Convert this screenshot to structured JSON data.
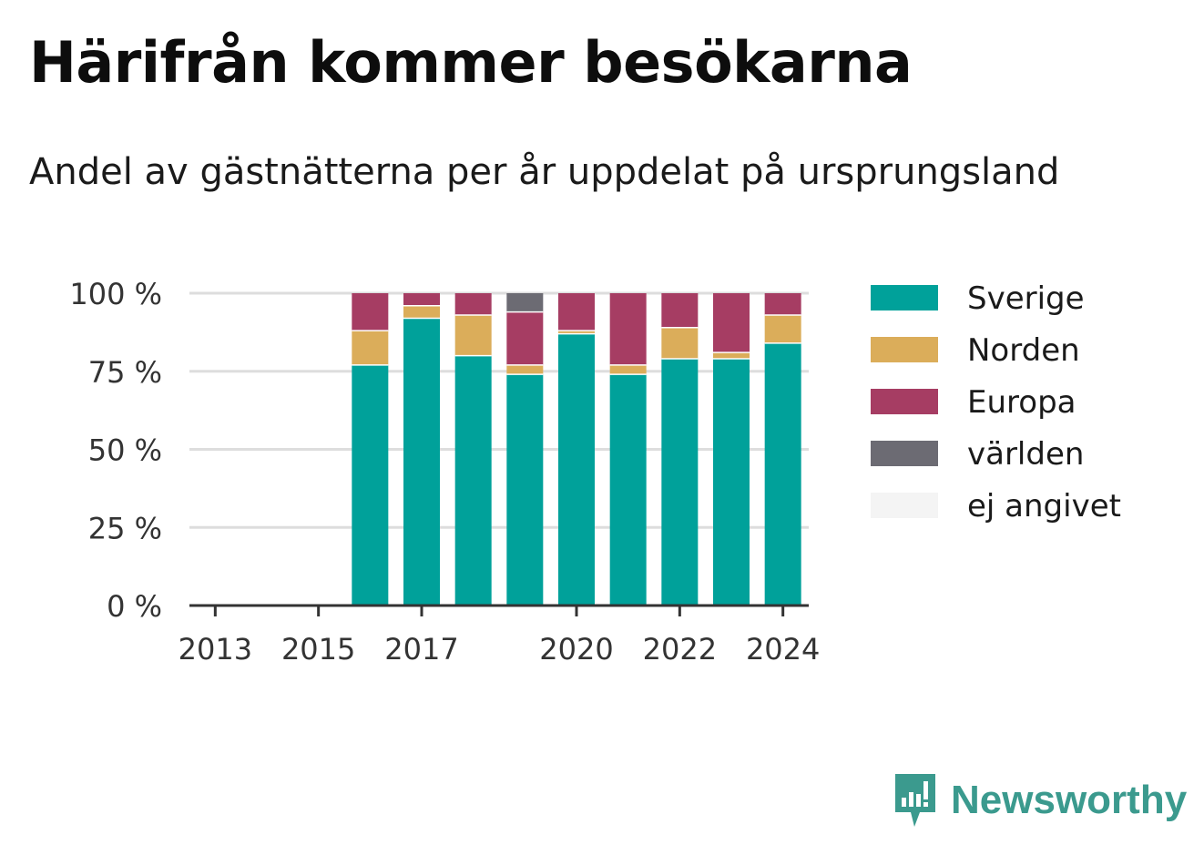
{
  "header": {
    "title": "Härifrån kommer besökarna",
    "subtitle": "Andel av gästnätterna per år uppdelat på ursprungsland"
  },
  "chart_data": {
    "type": "bar",
    "stacked": true,
    "categories": [
      "2013",
      "2014",
      "2015",
      "2016",
      "2017",
      "2018",
      "2019",
      "2020",
      "2021",
      "2022",
      "2023",
      "2024"
    ],
    "x_tick_labels": [
      "2013",
      "2015",
      "2017",
      "2020",
      "2022",
      "2024"
    ],
    "y_tick_labels": [
      "0 %",
      "25 %",
      "50 %",
      "75 %",
      "100 %"
    ],
    "ylim": [
      0,
      100
    ],
    "grid": true,
    "legend_position": "right",
    "series": [
      {
        "name": "Sverige",
        "color": "#00a19a",
        "values": [
          null,
          null,
          null,
          77,
          92,
          80,
          74,
          87,
          74,
          79,
          79,
          84
        ]
      },
      {
        "name": "Norden",
        "color": "#dbad5a",
        "values": [
          null,
          null,
          null,
          11,
          4,
          13,
          3,
          1,
          3,
          10,
          2,
          9
        ]
      },
      {
        "name": "Europa",
        "color": "#a63d63",
        "values": [
          null,
          null,
          null,
          12,
          4,
          7,
          17,
          12,
          23,
          11,
          19,
          7
        ]
      },
      {
        "name": "världen",
        "color": "#6c6b73",
        "values": [
          null,
          null,
          null,
          0,
          0,
          0,
          6,
          0,
          0,
          0,
          0,
          0
        ]
      },
      {
        "name": "ej angivet",
        "color": "#f4f4f4",
        "values": [
          null,
          null,
          null,
          0,
          0,
          0,
          0,
          0,
          0,
          0,
          0,
          0
        ]
      }
    ]
  },
  "brand": {
    "name": "Newsworthy",
    "icon": "newsworthy-logo-icon",
    "color": "#3b9a8e"
  }
}
